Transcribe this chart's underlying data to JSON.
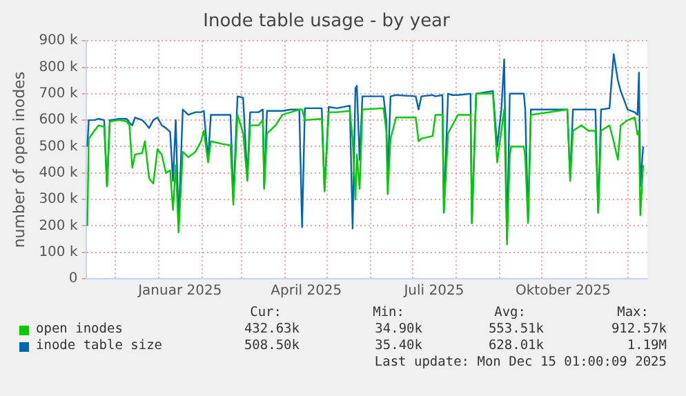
{
  "chart_data": {
    "type": "line",
    "title": "Inode table usage - by year",
    "ylabel": "number of open inodes",
    "x": [
      "2024-11-11",
      "2024-11-12",
      "2024-11-16",
      "2024-11-19",
      "2024-11-23",
      "2024-11-25",
      "2024-11-27",
      "2024-12-04",
      "2024-12-09",
      "2024-12-11",
      "2024-12-13",
      "2024-12-15",
      "2024-12-20",
      "2024-12-22",
      "2024-12-25",
      "2024-12-28",
      "2024-12-31",
      "2025-01-03",
      "2025-01-06",
      "2025-01-09",
      "2025-01-11",
      "2025-01-13",
      "2025-01-15",
      "2025-01-18",
      "2025-01-22",
      "2025-01-27",
      "2025-01-31",
      "2025-02-02",
      "2025-02-05",
      "2025-02-07",
      "2025-02-15",
      "2025-02-21",
      "2025-02-23",
      "2025-02-26",
      "2025-03-02",
      "2025-03-05",
      "2025-03-07",
      "2025-03-13",
      "2025-03-16",
      "2025-03-17",
      "2025-03-19",
      "2025-03-25",
      "2025-03-30",
      "2025-04-05",
      "2025-04-11",
      "2025-04-13",
      "2025-04-15",
      "2025-04-27",
      "2025-04-29",
      "2025-05-02",
      "2025-05-08",
      "2025-05-17",
      "2025-05-19",
      "2025-05-21",
      "2025-05-22",
      "2025-05-24",
      "2025-05-26",
      "2025-06-10",
      "2025-06-12",
      "2025-06-13",
      "2025-06-15",
      "2025-06-19",
      "2025-07-03",
      "2025-07-05",
      "2025-07-07",
      "2025-07-15",
      "2025-07-17",
      "2025-07-22",
      "2025-07-23",
      "2025-07-26",
      "2025-07-29",
      "2025-08-02",
      "2025-08-11",
      "2025-08-12",
      "2025-08-15",
      "2025-08-27",
      "2025-08-30",
      "2025-09-02",
      "2025-09-04",
      "2025-09-06",
      "2025-09-08",
      "2025-09-09",
      "2025-09-18",
      "2025-09-19",
      "2025-09-21",
      "2025-09-23",
      "2025-10-19",
      "2025-10-21",
      "2025-10-23",
      "2025-10-29",
      "2025-11-03",
      "2025-11-08",
      "2025-11-10",
      "2025-11-12",
      "2025-11-18",
      "2025-11-21",
      "2025-11-24",
      "2025-11-26",
      "2025-12-01",
      "2025-12-06",
      "2025-12-08",
      "2025-12-09",
      "2025-12-10",
      "2025-12-12"
    ],
    "series": [
      {
        "name": "open inodes",
        "color": "#00cc00",
        "values": [
          200000,
          530000,
          560000,
          580000,
          575000,
          350000,
          595000,
          600000,
          595000,
          580000,
          420000,
          470000,
          475000,
          520000,
          380000,
          360000,
          490000,
          470000,
          400000,
          410000,
          260000,
          430000,
          175000,
          480000,
          460000,
          480000,
          520000,
          560000,
          440000,
          520000,
          510000,
          505000,
          280000,
          620000,
          550000,
          370000,
          580000,
          580000,
          600000,
          340000,
          550000,
          580000,
          620000,
          630000,
          640000,
          640000,
          600000,
          605000,
          330000,
          630000,
          630000,
          635000,
          530000,
          300000,
          470000,
          340000,
          640000,
          645000,
          560000,
          320000,
          530000,
          610000,
          610000,
          520000,
          530000,
          540000,
          620000,
          620000,
          250000,
          550000,
          580000,
          620000,
          620000,
          210000,
          700000,
          700000,
          440000,
          560000,
          640000,
          130000,
          470000,
          500000,
          500000,
          460000,
          210000,
          620000,
          640000,
          370000,
          560000,
          580000,
          560000,
          560000,
          250000,
          560000,
          580000,
          520000,
          450000,
          580000,
          600000,
          610000,
          545000,
          560000,
          240000,
          430000
        ]
      },
      {
        "name": "inode table size",
        "color": "#0066b3",
        "values": [
          500000,
          600000,
          600000,
          605000,
          600000,
          350000,
          600000,
          605000,
          605000,
          590000,
          580000,
          610000,
          600000,
          590000,
          570000,
          600000,
          610000,
          580000,
          570000,
          555000,
          370000,
          600000,
          210000,
          640000,
          620000,
          630000,
          630000,
          635000,
          450000,
          620000,
          620000,
          620000,
          300000,
          690000,
          685000,
          380000,
          630000,
          630000,
          640000,
          345000,
          635000,
          635000,
          635000,
          640000,
          640000,
          195000,
          645000,
          645000,
          335000,
          650000,
          645000,
          655000,
          190000,
          720000,
          730000,
          450000,
          690000,
          690000,
          600000,
          380000,
          690000,
          695000,
          690000,
          640000,
          690000,
          695000,
          690000,
          695000,
          250000,
          700000,
          695000,
          695000,
          700000,
          210000,
          700000,
          710000,
          500000,
          640000,
          830000,
          150000,
          700000,
          700000,
          700000,
          640000,
          220000,
          640000,
          640000,
          380000,
          640000,
          640000,
          640000,
          640000,
          250000,
          640000,
          645000,
          850000,
          750000,
          710000,
          640000,
          630000,
          620000,
          780000,
          350000,
          500000
        ]
      }
    ],
    "xlim": [
      "2024-11-10",
      "2025-12-15"
    ],
    "xticks": [
      {
        "value": "2024-12-01",
        "label": null
      },
      {
        "value": "2025-01-01",
        "label": null
      },
      {
        "value": "2025-01-16",
        "label": "Januar 2025"
      },
      {
        "value": "2025-02-01",
        "label": null
      },
      {
        "value": "2025-03-01",
        "label": null
      },
      {
        "value": "2025-04-01",
        "label": null
      },
      {
        "value": "2025-04-16",
        "label": "April 2025"
      },
      {
        "value": "2025-05-01",
        "label": null
      },
      {
        "value": "2025-06-01",
        "label": null
      },
      {
        "value": "2025-07-01",
        "label": null
      },
      {
        "value": "2025-07-16",
        "label": "Juli 2025"
      },
      {
        "value": "2025-08-01",
        "label": null
      },
      {
        "value": "2025-09-01",
        "label": null
      },
      {
        "value": "2025-10-01",
        "label": null
      },
      {
        "value": "2025-10-16",
        "label": "Oktober 2025"
      },
      {
        "value": "2025-11-01",
        "label": null
      },
      {
        "value": "2025-12-01",
        "label": null
      }
    ],
    "ylim": [
      0,
      900000
    ],
    "yticks": [
      0,
      {
        "value": 100000,
        "label": "100 k"
      },
      {
        "value": 200000,
        "label": "200 k"
      },
      {
        "value": 300000,
        "label": "300 k"
      },
      {
        "value": 400000,
        "label": "400 k"
      },
      {
        "value": 500000,
        "label": "500 k"
      },
      {
        "value": 600000,
        "label": "600 k"
      },
      {
        "value": 700000,
        "label": "700 k"
      },
      {
        "value": 800000,
        "label": "800 k"
      },
      {
        "value": 900000,
        "label": "900 k"
      }
    ],
    "grid": true,
    "legend": "bottom",
    "marker": "none",
    "line_style": "solid",
    "annotations": [
      "Cur:",
      "Min:",
      "Avg:",
      "Max:",
      "432.63k",
      "34.90k",
      "553.51k",
      "912.57k",
      "508.50k",
      "35.40k",
      "628.01k",
      "1.19M",
      "Last update: Mon Dec 15 01:00:09 2025"
    ]
  }
}
